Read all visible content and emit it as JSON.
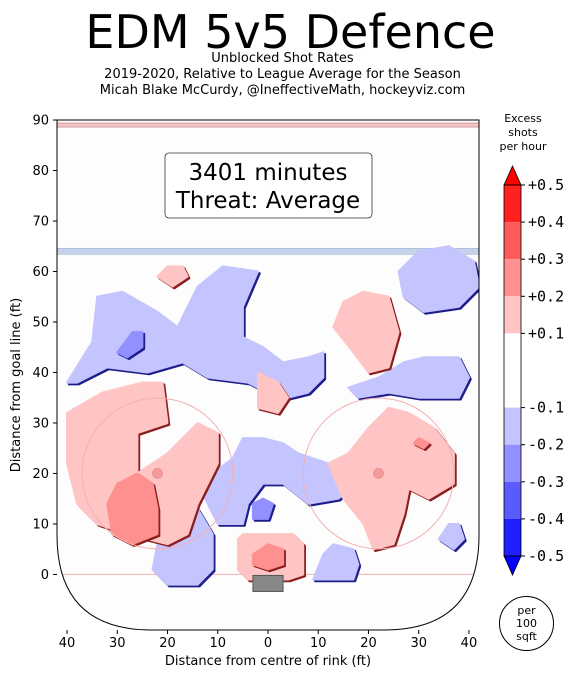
{
  "header": {
    "title": "EDM 5v5 Defence",
    "subtitle_lines": [
      "Unblocked Shot Rates",
      "2019-2020, Relative to League Average for the Season",
      "Micah Blake McCurdy, @IneffectiveMath, hockeyviz.com"
    ]
  },
  "info_box": {
    "minutes_line": "3401 minutes",
    "threat_line": "Threat: Average"
  },
  "colorbar": {
    "title_lines": [
      "Excess",
      "shots",
      "per hour"
    ],
    "tick_labels": [
      "+0.5",
      "+0.4",
      "+0.3",
      "+0.2",
      "+0.1",
      "-0.1",
      "-0.2",
      "-0.3",
      "-0.4",
      "-0.5"
    ],
    "tick_values": [
      0.5,
      0.4,
      0.3,
      0.2,
      0.1,
      -0.1,
      -0.2,
      -0.3,
      -0.4,
      -0.5
    ],
    "levels": [
      {
        "from": 0.4,
        "to": 0.5,
        "color": "#ff2020"
      },
      {
        "from": 0.3,
        "to": 0.4,
        "color": "#ff5a5a"
      },
      {
        "from": 0.2,
        "to": 0.3,
        "color": "#ff9090"
      },
      {
        "from": 0.1,
        "to": 0.2,
        "color": "#ffc4c4"
      },
      {
        "from": -0.1,
        "to": 0.1,
        "color": "#ffffff"
      },
      {
        "from": -0.2,
        "to": -0.1,
        "color": "#c4c4ff"
      },
      {
        "from": -0.3,
        "to": -0.2,
        "color": "#9090ff"
      },
      {
        "from": -0.4,
        "to": -0.3,
        "color": "#5a5aff"
      },
      {
        "from": -0.5,
        "to": -0.4,
        "color": "#1e1eff"
      }
    ],
    "units_badge": [
      "per",
      "100",
      "sqft"
    ]
  },
  "chart_data": {
    "type": "heatmap",
    "title": "EDM 5v5 Defence",
    "subtitle": "Unblocked Shot Rates",
    "xlabel": "Distance from centre of rink (ft)",
    "ylabel": "Distance from goal line (ft)",
    "x_tick_labels": [
      "40",
      "30",
      "20",
      "10",
      "0",
      "10",
      "20",
      "30",
      "40"
    ],
    "x_tick_values": [
      -40,
      -30,
      -20,
      -10,
      0,
      10,
      20,
      30,
      40
    ],
    "y_tick_labels": [
      "0",
      "10",
      "20",
      "30",
      "40",
      "50",
      "60",
      "70",
      "80",
      "90"
    ],
    "y_tick_values": [
      0,
      10,
      20,
      30,
      40,
      50,
      60,
      70,
      80,
      90
    ],
    "xlim": [
      -42,
      42
    ],
    "ylim": [
      -11,
      90
    ],
    "blue_line_y": 64,
    "red_line_y": 89,
    "faceoff_dots": [
      {
        "x": -22,
        "y": 20
      },
      {
        "x": 22,
        "y": 20
      }
    ],
    "regions": [
      {
        "level": -0.15,
        "points": [
          [
            -40,
            38
          ],
          [
            -35,
            46
          ],
          [
            -34,
            55
          ],
          [
            -29,
            56
          ],
          [
            -22,
            52
          ],
          [
            -18,
            49
          ],
          [
            -14,
            57
          ],
          [
            -9,
            61
          ],
          [
            -2,
            60
          ],
          [
            -5,
            53
          ],
          [
            -5,
            47
          ],
          [
            -1,
            45
          ],
          [
            3,
            42
          ],
          [
            8,
            43
          ],
          [
            11,
            44
          ],
          [
            11,
            39
          ],
          [
            8,
            36
          ],
          [
            4,
            35
          ],
          [
            0,
            36
          ],
          [
            -4,
            38
          ],
          [
            -12,
            39
          ],
          [
            -17,
            42
          ],
          [
            -24,
            40
          ],
          [
            -32,
            41
          ],
          [
            -38,
            38
          ]
        ]
      },
      {
        "level": -0.25,
        "points": [
          [
            -30,
            44
          ],
          [
            -27,
            48
          ],
          [
            -25,
            48
          ],
          [
            -25,
            45
          ],
          [
            -28,
            43
          ]
        ]
      },
      {
        "level": -0.15,
        "points": [
          [
            16,
            37
          ],
          [
            22,
            39
          ],
          [
            27,
            42
          ],
          [
            31,
            43
          ],
          [
            38,
            43
          ],
          [
            40,
            39
          ],
          [
            38,
            35
          ],
          [
            30,
            35
          ],
          [
            24,
            36
          ],
          [
            18,
            35
          ]
        ]
      },
      {
        "level": -0.15,
        "points": [
          [
            26,
            60
          ],
          [
            30,
            64
          ],
          [
            36,
            65
          ],
          [
            41,
            62
          ],
          [
            42,
            57
          ],
          [
            38,
            53
          ],
          [
            31,
            52
          ],
          [
            27,
            55
          ]
        ]
      },
      {
        "level": -0.15,
        "points": [
          [
            -7,
            23
          ],
          [
            -5,
            27
          ],
          [
            -1,
            27
          ],
          [
            3,
            26
          ],
          [
            6,
            24
          ],
          [
            12,
            22
          ],
          [
            17,
            22
          ],
          [
            19,
            19
          ],
          [
            14,
            15
          ],
          [
            8,
            14
          ],
          [
            3,
            18
          ],
          [
            -1,
            18
          ],
          [
            -4,
            14
          ],
          [
            -5,
            10
          ],
          [
            -10,
            10
          ],
          [
            -13,
            16
          ],
          [
            -11,
            20
          ]
        ]
      },
      {
        "level": -0.25,
        "points": [
          [
            -3,
            11
          ],
          [
            -3,
            14
          ],
          [
            -1,
            15
          ],
          [
            1,
            14
          ],
          [
            0,
            11
          ]
        ]
      },
      {
        "level": -0.15,
        "points": [
          [
            -22,
            6
          ],
          [
            -18,
            12
          ],
          [
            -14,
            13
          ],
          [
            -11,
            8
          ],
          [
            -11,
            1
          ],
          [
            -14,
            -2
          ],
          [
            -20,
            -2
          ],
          [
            -23,
            1
          ]
        ]
      },
      {
        "level": -0.15,
        "points": [
          [
            9,
            -1
          ],
          [
            11,
            4
          ],
          [
            13,
            6
          ],
          [
            17,
            5
          ],
          [
            18,
            2
          ],
          [
            17,
            -1
          ]
        ]
      },
      {
        "level": -0.15,
        "points": [
          [
            34,
            7
          ],
          [
            36,
            10
          ],
          [
            38,
            10
          ],
          [
            39,
            7
          ],
          [
            37,
            5
          ]
        ]
      },
      {
        "level": 0.15,
        "points": [
          [
            -22,
            59
          ],
          [
            -20,
            61
          ],
          [
            -17,
            61
          ],
          [
            -16,
            59
          ],
          [
            -19,
            57
          ]
        ]
      },
      {
        "level": 0.15,
        "points": [
          [
            13,
            49
          ],
          [
            15,
            54
          ],
          [
            19,
            56
          ],
          [
            24,
            55
          ],
          [
            26,
            48
          ],
          [
            24,
            41
          ],
          [
            20,
            40
          ],
          [
            17,
            44
          ]
        ]
      },
      {
        "level": 0.15,
        "points": [
          [
            -2,
            36
          ],
          [
            -2,
            40
          ],
          [
            2,
            38
          ],
          [
            4,
            35
          ],
          [
            2,
            32
          ],
          [
            -2,
            33
          ]
        ]
      },
      {
        "level": 0.15,
        "points": [
          [
            -40,
            32
          ],
          [
            -33,
            36
          ],
          [
            -25,
            38
          ],
          [
            -21,
            38
          ],
          [
            -20,
            30
          ],
          [
            -26,
            28
          ],
          [
            -26,
            20
          ],
          [
            -20,
            24
          ],
          [
            -14,
            30
          ],
          [
            -10,
            28
          ],
          [
            -10,
            22
          ],
          [
            -14,
            14
          ],
          [
            -16,
            8
          ],
          [
            -20,
            6
          ],
          [
            -28,
            8
          ],
          [
            -34,
            10
          ],
          [
            -38,
            14
          ],
          [
            -40,
            22
          ]
        ]
      },
      {
        "level": 0.25,
        "points": [
          [
            -32,
            14
          ],
          [
            -30,
            18
          ],
          [
            -26,
            20
          ],
          [
            -23,
            18
          ],
          [
            -22,
            13
          ],
          [
            -22,
            8
          ],
          [
            -27,
            6
          ],
          [
            -31,
            8
          ]
        ]
      },
      {
        "level": 0.15,
        "points": [
          [
            12,
            22
          ],
          [
            16,
            24
          ],
          [
            20,
            29
          ],
          [
            24,
            33
          ],
          [
            28,
            32
          ],
          [
            33,
            29
          ],
          [
            37,
            24
          ],
          [
            37,
            18
          ],
          [
            32,
            15
          ],
          [
            28,
            17
          ],
          [
            27,
            12
          ],
          [
            25,
            6
          ],
          [
            21,
            5
          ],
          [
            19,
            10
          ],
          [
            15,
            15
          ]
        ]
      },
      {
        "level": 0.25,
        "points": [
          [
            30,
            27
          ],
          [
            32,
            26
          ],
          [
            31,
            25
          ],
          [
            29,
            26
          ]
        ]
      },
      {
        "level": 0.15,
        "points": [
          [
            -6,
            7
          ],
          [
            -5,
            8
          ],
          [
            5,
            8
          ],
          [
            7,
            6
          ],
          [
            7,
            0
          ],
          [
            4,
            -1
          ],
          [
            -4,
            -1
          ],
          [
            -6,
            1
          ]
        ]
      },
      {
        "level": 0.25,
        "points": [
          [
            -3,
            4
          ],
          [
            0,
            6
          ],
          [
            3,
            5
          ],
          [
            3,
            2
          ],
          [
            0,
            1
          ],
          [
            -3,
            2
          ]
        ]
      }
    ]
  },
  "axes": {
    "x_label": "Distance from centre of rink (ft)",
    "y_label": "Distance from goal line (ft)"
  }
}
